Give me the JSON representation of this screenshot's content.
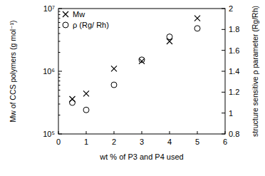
{
  "chart_data": {
    "type": "scatter",
    "x_label": "wt % of P3 and P4 used",
    "y_label": "Mw of CCS polymers (g mol⁻¹)",
    "y2_label": "structure sensitive ρ parameter (Rg/Rh)",
    "x": [
      0.5,
      1,
      2,
      3,
      4,
      5
    ],
    "series": [
      {
        "name": "Mw",
        "color": "#000000",
        "marker": "x",
        "values": [
          360000,
          440000,
          1100000,
          1450000,
          3000000,
          7000000
        ]
      },
      {
        "name": "ρ (Rg/ Rh)",
        "color": "#000000",
        "marker": "circle",
        "axis": "y2",
        "values": [
          1.1,
          1.03,
          1.27,
          1.51,
          1.73,
          1.81
        ]
      }
    ],
    "xlim": [
      0,
      6
    ],
    "xticks": [
      0,
      1,
      2,
      3,
      4,
      5,
      6
    ],
    "ylim": [
      100000,
      10000000
    ],
    "yticks": [
      {
        "value": 100000,
        "label": "10⁵"
      },
      {
        "value": 1000000,
        "label": "10⁶"
      },
      {
        "value": 10000000,
        "label": "10⁷"
      }
    ],
    "y2lim": [
      0.8,
      2
    ],
    "y2ticks": [
      0.8,
      1,
      1.2,
      1.4,
      1.6,
      1.8,
      2
    ],
    "log": "y",
    "grid": false,
    "legend": "upper left"
  }
}
